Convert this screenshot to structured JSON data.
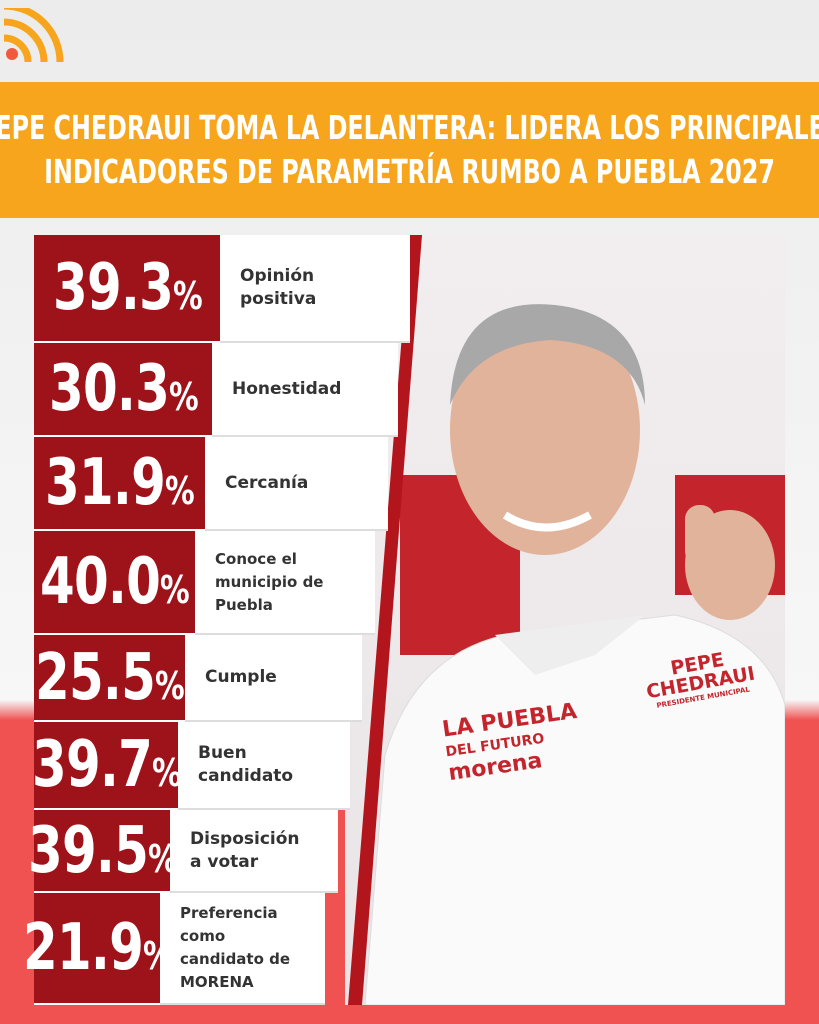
{
  "header": {
    "title_lines": [
      "PEPE CHEDRAUI TOMA LA DELANTERA: LIDERA LOS PRINCIPALES",
      "INDICADORES DE PARAMETRÍA RUMBO A PUEBLA 2027"
    ]
  },
  "items": [
    {
      "value": "39.3",
      "unit": "%",
      "label": [
        "Opinión",
        "positiva"
      ]
    },
    {
      "value": "30.3",
      "unit": "%",
      "label": [
        "Honestidad"
      ]
    },
    {
      "value": "31.9",
      "unit": "%",
      "label": [
        "Cercanía"
      ]
    },
    {
      "value": "40.0",
      "unit": "%",
      "label": [
        "Conoce el",
        "municipio de",
        "Puebla"
      ]
    },
    {
      "value": "25.5",
      "unit": "%",
      "label": [
        "Cumple"
      ]
    },
    {
      "value": "39.7",
      "unit": "%",
      "label": [
        "Buen",
        "candidato"
      ]
    },
    {
      "value": "39.5",
      "unit": "%",
      "label": [
        "Disposición",
        "a votar"
      ]
    },
    {
      "value": "21.9",
      "unit": "%",
      "label": [
        "Preferencia como",
        "candidato de",
        "MORENA"
      ]
    }
  ],
  "photo": {
    "shirt_lines": [
      "LA PUEBLA",
      "DEL FUTURO",
      "morena"
    ],
    "badge_lines": [
      "PEPE",
      "CHEDRAUI",
      "PRESIDENTE MUNICIPAL"
    ]
  }
}
